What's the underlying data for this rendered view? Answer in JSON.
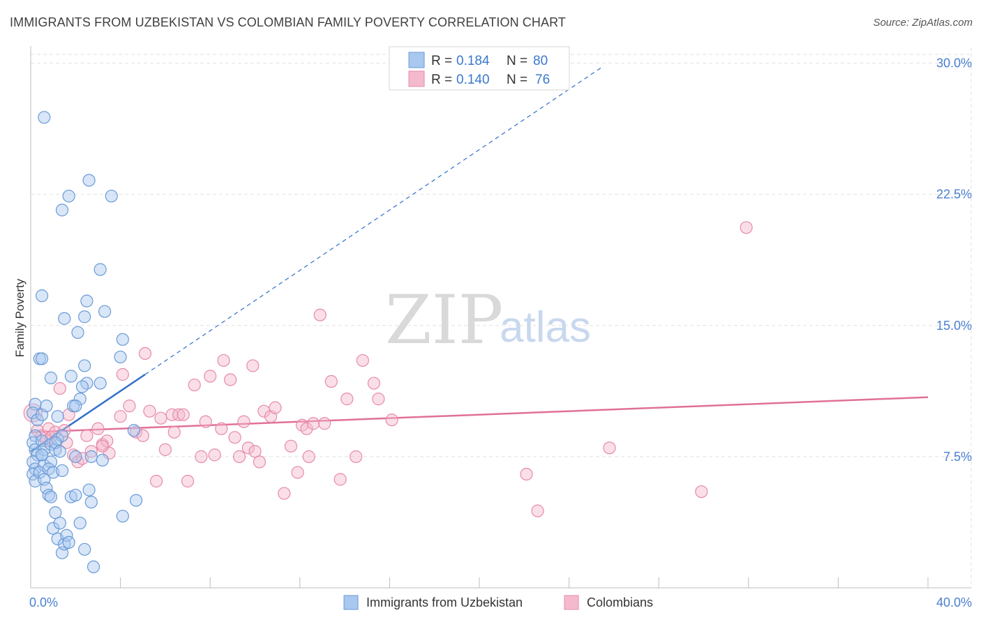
{
  "title": "IMMIGRANTS FROM UZBEKISTAN VS COLOMBIAN FAMILY POVERTY CORRELATION CHART",
  "source": "Source: ZipAtlas.com",
  "watermark": {
    "zip": "ZIP",
    "atlas": "atlas"
  },
  "colors": {
    "blue_fill": "#a9c8ef",
    "blue_stroke": "#6a9ad6",
    "blue_line": "#2f6fc9",
    "pink_fill": "#f5b9cd",
    "pink_stroke": "#e68aa9",
    "pink_line": "#e07099",
    "grid": "#e2e2e2",
    "axis_text": "#4a7fd0"
  },
  "legend": {
    "rows": [
      {
        "r_label": "R =",
        "r_value": "0.184",
        "n_label": "N =",
        "n_value": "80"
      },
      {
        "r_label": "R =",
        "r_value": "0.140",
        "n_label": "N =",
        "n_value": "76"
      }
    ]
  },
  "chart_data": {
    "type": "scatter",
    "xlabel": "",
    "ylabel": "Family Poverty",
    "xlim": [
      0,
      40
    ],
    "ylim": [
      0,
      30.5
    ],
    "x_tick_labels": [
      "0.0%",
      "40.0%"
    ],
    "y_ticks": [
      7.5,
      15.0,
      22.5,
      30.0
    ],
    "y_tick_labels": [
      "7.5%",
      "15.0%",
      "22.5%",
      "30.0%"
    ],
    "grid": true,
    "legend_position": "top-center",
    "series": [
      {
        "name": "Immigrants from Uzbekistan",
        "R": 0.184,
        "N": 80,
        "trend": {
          "x0": 0,
          "y0": 7.8,
          "x1": 5.1,
          "y1": 12.2,
          "dash_to_x": 25.5
        },
        "points": [
          [
            0.2,
            10.5
          ],
          [
            0.1,
            10.0
          ],
          [
            0.3,
            9.6
          ],
          [
            0.2,
            8.7
          ],
          [
            0.1,
            8.3
          ],
          [
            0.2,
            7.9
          ],
          [
            0.3,
            7.6
          ],
          [
            0.1,
            7.2
          ],
          [
            0.2,
            6.8
          ],
          [
            0.1,
            6.5
          ],
          [
            0.2,
            6.1
          ],
          [
            0.5,
            9.9
          ],
          [
            0.5,
            8.4
          ],
          [
            0.6,
            7.9
          ],
          [
            0.5,
            7.6
          ],
          [
            0.6,
            7.0
          ],
          [
            0.4,
            6.6
          ],
          [
            0.6,
            6.2
          ],
          [
            0.7,
            5.7
          ],
          [
            0.8,
            5.3
          ],
          [
            0.9,
            8.2
          ],
          [
            0.9,
            7.2
          ],
          [
            0.8,
            6.8
          ],
          [
            1.0,
            6.6
          ],
          [
            1.1,
            7.9
          ],
          [
            1.2,
            8.5
          ],
          [
            1.1,
            4.3
          ],
          [
            1.0,
            3.4
          ],
          [
            1.3,
            3.7
          ],
          [
            1.2,
            2.8
          ],
          [
            1.4,
            2.0
          ],
          [
            1.5,
            2.5
          ],
          [
            1.6,
            3.0
          ],
          [
            1.7,
            2.6
          ],
          [
            0.6,
            26.9
          ],
          [
            1.7,
            22.4
          ],
          [
            1.4,
            21.6
          ],
          [
            2.6,
            23.3
          ],
          [
            3.6,
            22.4
          ],
          [
            3.1,
            18.2
          ],
          [
            0.5,
            16.7
          ],
          [
            2.5,
            16.4
          ],
          [
            2.4,
            15.5
          ],
          [
            3.3,
            15.8
          ],
          [
            1.5,
            15.4
          ],
          [
            2.1,
            14.6
          ],
          [
            4.1,
            14.2
          ],
          [
            0.4,
            13.1
          ],
          [
            0.5,
            13.1
          ],
          [
            0.9,
            12.0
          ],
          [
            1.8,
            12.1
          ],
          [
            2.4,
            12.7
          ],
          [
            4.0,
            13.2
          ],
          [
            3.1,
            11.7
          ],
          [
            2.5,
            11.7
          ],
          [
            2.3,
            11.5
          ],
          [
            2.2,
            10.8
          ],
          [
            0.7,
            10.4
          ],
          [
            1.9,
            10.4
          ],
          [
            2.0,
            10.4
          ],
          [
            1.2,
            9.8
          ],
          [
            1.4,
            8.7
          ],
          [
            1.1,
            8.3
          ],
          [
            1.3,
            7.8
          ],
          [
            1.4,
            6.7
          ],
          [
            2.0,
            7.5
          ],
          [
            2.7,
            7.5
          ],
          [
            3.2,
            7.3
          ],
          [
            4.6,
            9.0
          ],
          [
            1.8,
            5.2
          ],
          [
            2.0,
            5.3
          ],
          [
            2.6,
            5.6
          ],
          [
            2.7,
            4.9
          ],
          [
            2.2,
            3.7
          ],
          [
            4.7,
            5.0
          ],
          [
            4.1,
            4.1
          ],
          [
            2.4,
            2.2
          ],
          [
            2.8,
            1.2
          ],
          [
            0.9,
            5.2
          ],
          [
            0.5,
            7.6
          ]
        ]
      },
      {
        "name": "Colombians",
        "R": 0.14,
        "N": 76,
        "trend": {
          "x0": 0,
          "y0": 8.9,
          "x1": 40,
          "y1": 10.9
        },
        "points": [
          [
            0.1,
            10.0
          ],
          [
            0.3,
            9.0
          ],
          [
            0.5,
            8.7
          ],
          [
            0.7,
            8.4
          ],
          [
            0.8,
            9.1
          ],
          [
            0.9,
            8.6
          ],
          [
            1.1,
            8.9
          ],
          [
            1.3,
            11.4
          ],
          [
            1.5,
            9.0
          ],
          [
            1.7,
            9.9
          ],
          [
            1.9,
            7.6
          ],
          [
            2.1,
            7.2
          ],
          [
            2.3,
            7.4
          ],
          [
            2.5,
            8.7
          ],
          [
            2.7,
            7.8
          ],
          [
            3.0,
            9.1
          ],
          [
            3.2,
            8.2
          ],
          [
            3.4,
            8.4
          ],
          [
            3.5,
            7.7
          ],
          [
            4.1,
            12.2
          ],
          [
            4.4,
            10.4
          ],
          [
            4.0,
            9.8
          ],
          [
            4.7,
            8.9
          ],
          [
            5.0,
            8.7
          ],
          [
            5.1,
            13.4
          ],
          [
            5.3,
            10.1
          ],
          [
            5.6,
            6.1
          ],
          [
            5.8,
            9.7
          ],
          [
            6.0,
            7.9
          ],
          [
            6.3,
            9.9
          ],
          [
            6.4,
            8.9
          ],
          [
            6.6,
            9.9
          ],
          [
            6.8,
            9.9
          ],
          [
            7.0,
            6.1
          ],
          [
            7.3,
            11.6
          ],
          [
            7.6,
            7.5
          ],
          [
            7.8,
            9.5
          ],
          [
            8.0,
            12.1
          ],
          [
            8.2,
            7.6
          ],
          [
            8.5,
            9.1
          ],
          [
            8.6,
            13.0
          ],
          [
            8.9,
            11.9
          ],
          [
            9.1,
            8.6
          ],
          [
            9.3,
            7.5
          ],
          [
            9.5,
            9.5
          ],
          [
            9.7,
            8.0
          ],
          [
            9.9,
            12.7
          ],
          [
            10.0,
            7.8
          ],
          [
            10.2,
            7.2
          ],
          [
            10.4,
            10.1
          ],
          [
            10.7,
            9.8
          ],
          [
            10.9,
            10.3
          ],
          [
            11.3,
            5.4
          ],
          [
            11.6,
            8.1
          ],
          [
            11.9,
            6.6
          ],
          [
            12.1,
            9.3
          ],
          [
            12.3,
            9.1
          ],
          [
            12.4,
            7.5
          ],
          [
            12.6,
            9.4
          ],
          [
            12.9,
            15.6
          ],
          [
            13.1,
            9.4
          ],
          [
            13.4,
            11.8
          ],
          [
            13.8,
            6.2
          ],
          [
            14.1,
            10.8
          ],
          [
            14.5,
            7.5
          ],
          [
            14.8,
            13.0
          ],
          [
            15.3,
            11.7
          ],
          [
            15.5,
            10.8
          ],
          [
            16.1,
            9.6
          ],
          [
            22.6,
            4.4
          ],
          [
            22.1,
            6.5
          ],
          [
            25.8,
            8.0
          ],
          [
            29.9,
            5.5
          ],
          [
            31.9,
            20.6
          ],
          [
            1.6,
            8.3
          ],
          [
            3.2,
            8.1
          ]
        ]
      }
    ]
  },
  "bottom_legend": [
    {
      "label": "Immigrants from Uzbekistan"
    },
    {
      "label": "Colombians"
    }
  ]
}
